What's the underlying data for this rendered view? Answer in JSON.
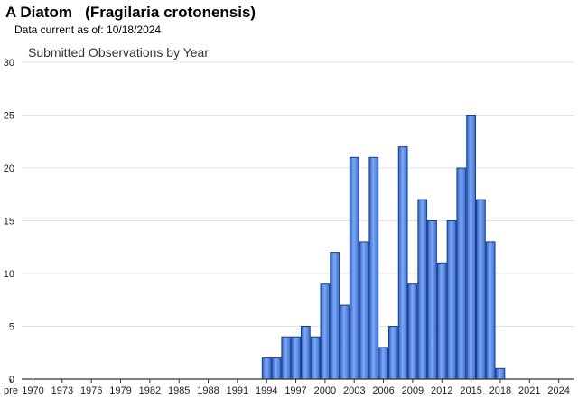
{
  "header": {
    "title": "A Diatom   (Fragilaria crotonensis)",
    "subtitle": "Data current as of: 10/18/2024"
  },
  "chart_data": {
    "type": "bar",
    "title": "Submitted Observations by Year",
    "xlabel": "",
    "ylabel": "",
    "ylim": [
      0,
      30
    ],
    "yticks": [
      0,
      5,
      10,
      15,
      20,
      25,
      30
    ],
    "grid": true,
    "legend": "none",
    "bar_color": "#4a7fe0",
    "bar_edge_color": "#1a3f8f",
    "x_tick_labels": [
      "pre",
      "1970",
      "1973",
      "1976",
      "1979",
      "1982",
      "1985",
      "1988",
      "1991",
      "1994",
      "1997",
      "2000",
      "2003",
      "2006",
      "2009",
      "2012",
      "2015",
      "2018",
      "2021",
      "2024"
    ],
    "categories": [
      "1994",
      "1995",
      "1996",
      "1997",
      "1998",
      "1999",
      "2000",
      "2001",
      "2002",
      "2003",
      "2004",
      "2005",
      "2006",
      "2007",
      "2008",
      "2009",
      "2010",
      "2011",
      "2012",
      "2013",
      "2014",
      "2015",
      "2016",
      "2017",
      "2018"
    ],
    "values": [
      2,
      2,
      4,
      4,
      5,
      4,
      9,
      12,
      7,
      21,
      13,
      21,
      3,
      5,
      22,
      9,
      17,
      15,
      11,
      15,
      20,
      25,
      17,
      13,
      1
    ]
  }
}
